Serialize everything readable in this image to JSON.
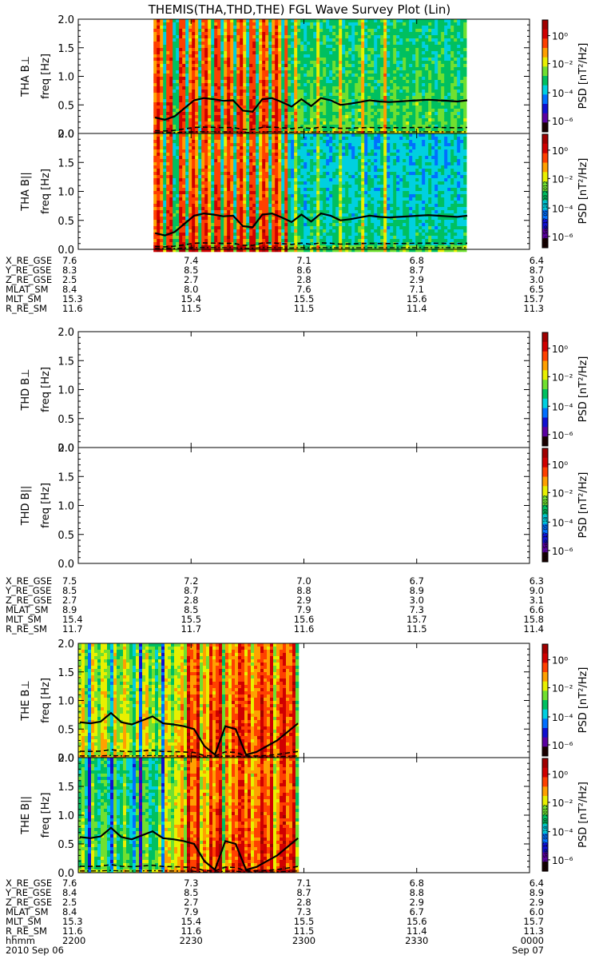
{
  "title": "THEMIS(THA,THD,THE) FGL Wave Survey Plot (Lin)",
  "freq_label": "freq [Hz]",
  "colorbar": {
    "label": "PSD [nT²/Hz]",
    "ticks": [
      "10⁰",
      "10⁻²",
      "10⁻⁴",
      "10⁻⁶"
    ],
    "stamp": "Mon Sep 17 05:18:30 2012",
    "colors": [
      "#1a0000",
      "#5a00a0",
      "#1010d0",
      "#0070ff",
      "#00d0e0",
      "#00c060",
      "#70e030",
      "#e8f000",
      "#ffa000",
      "#ff4000",
      "#d00000",
      "#a00000"
    ]
  },
  "ephem_labels": [
    "X_RE_GSE",
    "Y_RE_GSE",
    "Z_RE_GSE",
    "MLAT_SM",
    "MLT_SM",
    "R_RE_SM"
  ],
  "time_axis": {
    "hhmm_label": "hhmm",
    "ticks": [
      "2200",
      "2230",
      "2300",
      "2330",
      "0000"
    ],
    "date_start": "2010   Sep 06",
    "date_end": "Sep 07"
  },
  "chart_data": [
    {
      "type": "heatmap",
      "probe": "THA",
      "panels": [
        {
          "name": "THA B⊥",
          "data_span_hhmm": [
            "2220",
            "2343"
          ],
          "ylim": [
            0,
            2.0
          ],
          "yticks": [
            "0.0",
            "0.5",
            "1.0",
            "1.5",
            "2.0"
          ]
        },
        {
          "name": "THA B||",
          "data_span_hhmm": [
            "2220",
            "2343"
          ],
          "ylim": [
            0,
            2.0
          ],
          "yticks": [
            "0.0",
            "0.5",
            "1.0",
            "1.5",
            "2.0"
          ]
        }
      ],
      "fce_line_hz": [
        0.28,
        0.24,
        0.3,
        0.44,
        0.58,
        0.62,
        0.6,
        0.57,
        0.58,
        0.4,
        0.38,
        0.6,
        0.62,
        0.55,
        0.47,
        0.6,
        0.48,
        0.62,
        0.58,
        0.5,
        0.52,
        0.55,
        0.58,
        0.56,
        0.55,
        0.56,
        0.57,
        0.58,
        0.59,
        0.58,
        0.57,
        0.56,
        0.58
      ],
      "ephemeris": {
        "X_RE_GSE": [
          "7.6",
          "7.4",
          "7.1",
          "6.8",
          "6.4"
        ],
        "Y_RE_GSE": [
          "8.3",
          "8.5",
          "8.6",
          "8.7",
          "8.7"
        ],
        "Z_RE_GSE": [
          "2.5",
          "2.7",
          "2.8",
          "2.9",
          "3.0"
        ],
        "MLAT_SM": [
          "8.4",
          "8.0",
          "7.6",
          "7.1",
          "6.5"
        ],
        "MLT_SM": [
          "15.3",
          "15.4",
          "15.5",
          "15.6",
          "15.7"
        ],
        "R_RE_SM": [
          "11.6",
          "11.5",
          "11.5",
          "11.4",
          "11.3"
        ]
      }
    },
    {
      "type": "heatmap",
      "probe": "THD",
      "panels": [
        {
          "name": "THD B⊥",
          "data_span_hhmm": null,
          "ylim": [
            0,
            2.0
          ],
          "yticks": [
            "0.0",
            "0.5",
            "1.0",
            "1.5",
            "2.0"
          ]
        },
        {
          "name": "THD B||",
          "data_span_hhmm": null,
          "ylim": [
            0,
            2.0
          ],
          "yticks": [
            "0.0",
            "0.5",
            "1.0",
            "1.5",
            "2.0"
          ]
        }
      ],
      "ephemeris": {
        "X_RE_GSE": [
          "7.5",
          "7.2",
          "7.0",
          "6.7",
          "6.3"
        ],
        "Y_RE_GSE": [
          "8.5",
          "8.7",
          "8.8",
          "8.9",
          "9.0"
        ],
        "Z_RE_GSE": [
          "2.7",
          "2.8",
          "2.9",
          "3.0",
          "3.1"
        ],
        "MLAT_SM": [
          "8.9",
          "8.5",
          "7.9",
          "7.3",
          "6.6"
        ],
        "MLT_SM": [
          "15.4",
          "15.5",
          "15.6",
          "15.7",
          "15.8"
        ],
        "R_RE_SM": [
          "11.7",
          "11.7",
          "11.6",
          "11.5",
          "11.4"
        ]
      }
    },
    {
      "type": "heatmap",
      "probe": "THE",
      "panels": [
        {
          "name": "THE B⊥",
          "data_span_hhmm": [
            "2200",
            "2258"
          ],
          "ylim": [
            0,
            2.0
          ],
          "yticks": [
            "0.0",
            "0.5",
            "1.0",
            "1.5",
            "2.0"
          ]
        },
        {
          "name": "THE B||",
          "data_span_hhmm": [
            "2200",
            "2258"
          ],
          "ylim": [
            0,
            2.0
          ],
          "yticks": [
            "0.0",
            "0.5",
            "1.0",
            "1.5",
            "2.0"
          ]
        }
      ],
      "fce_line_hz": [
        0.62,
        0.6,
        0.63,
        0.78,
        0.62,
        0.58,
        0.65,
        0.72,
        0.6,
        0.58,
        0.55,
        0.5,
        0.2,
        0.05,
        0.55,
        0.5,
        0.05,
        0.1,
        0.2,
        0.3,
        0.45,
        0.6
      ],
      "ephemeris": {
        "X_RE_GSE": [
          "7.6",
          "7.3",
          "7.1",
          "6.8",
          "6.4"
        ],
        "Y_RE_GSE": [
          "8.4",
          "8.5",
          "8.7",
          "8.8",
          "8.9"
        ],
        "Z_RE_GSE": [
          "2.5",
          "2.7",
          "2.8",
          "2.9",
          "2.9"
        ],
        "MLAT_SM": [
          "8.4",
          "7.9",
          "7.3",
          "6.7",
          "6.0"
        ],
        "MLT_SM": [
          "15.3",
          "15.4",
          "15.5",
          "15.6",
          "15.7"
        ],
        "R_RE_SM": [
          "11.6",
          "11.6",
          "11.5",
          "11.4",
          "11.3"
        ]
      }
    }
  ]
}
